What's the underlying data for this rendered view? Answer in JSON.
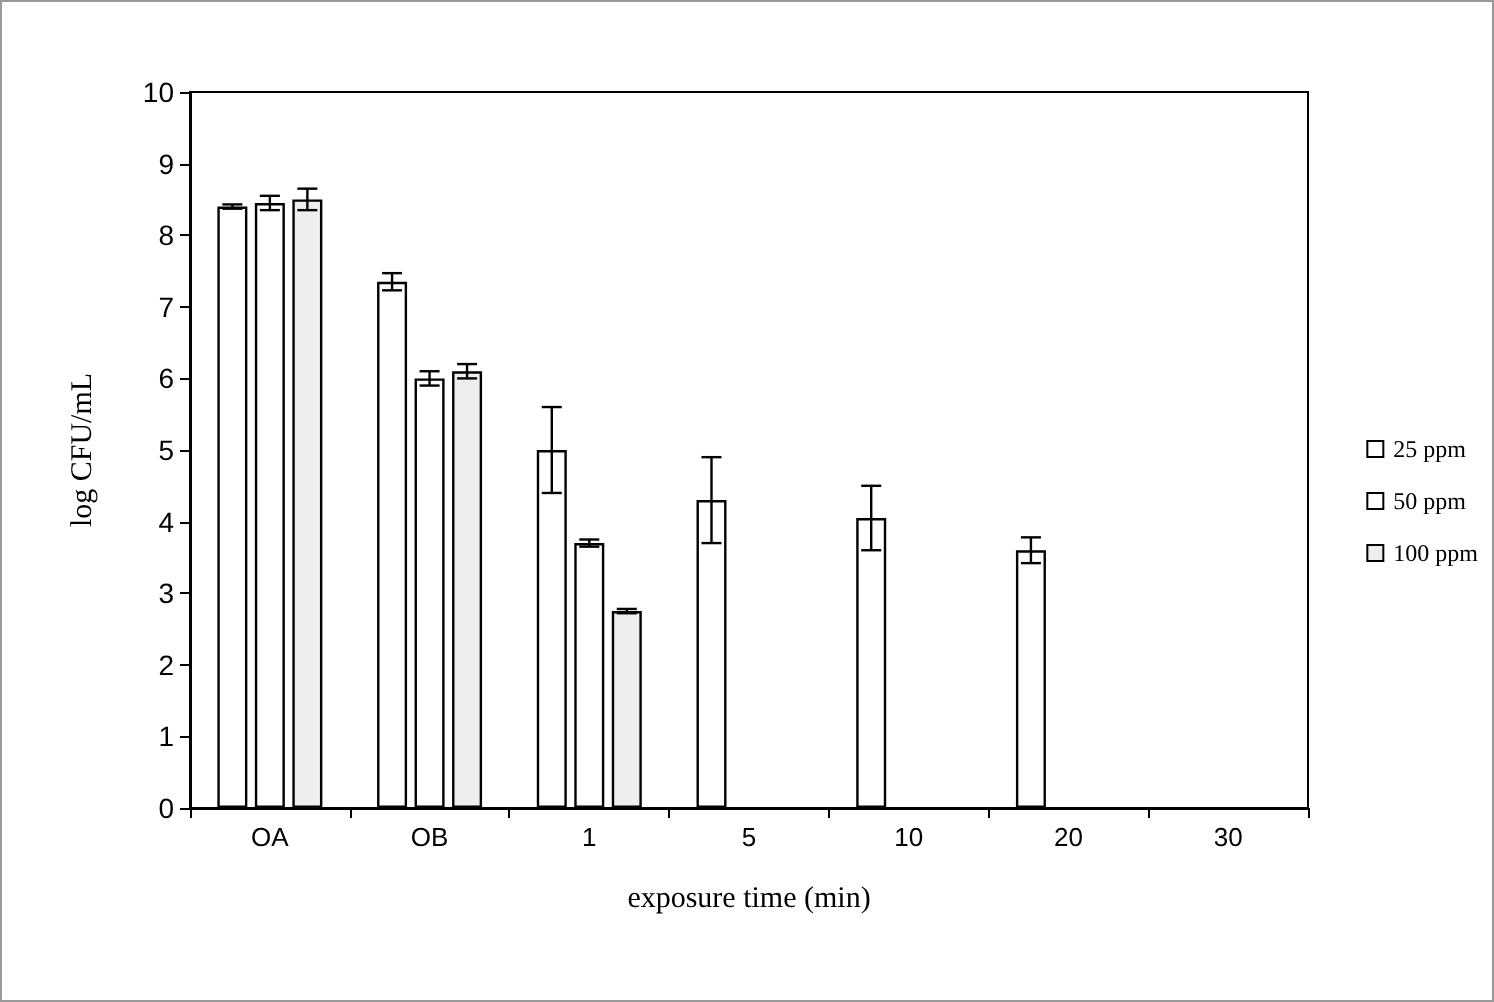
{
  "chart_data": {
    "type": "bar",
    "xlabel": "exposure time (min)",
    "ylabel": "log CFU/mL",
    "categories": [
      "OA",
      "OB",
      "1",
      "5",
      "10",
      "20",
      "30"
    ],
    "series": [
      {
        "name": "25 ppm",
        "color": "#ffffff",
        "values": [
          8.4,
          7.35,
          5.0,
          4.3,
          4.05,
          3.6,
          null
        ],
        "errors": [
          0.03,
          0.12,
          0.6,
          0.6,
          0.45,
          0.18,
          null
        ]
      },
      {
        "name": "50 ppm",
        "color": "#ffffff",
        "values": [
          8.45,
          6.0,
          3.7,
          null,
          null,
          null,
          null
        ],
        "errors": [
          0.1,
          0.1,
          0.05,
          null,
          null,
          null,
          null
        ]
      },
      {
        "name": "100 ppm",
        "color": "#eeeeee",
        "values": [
          8.5,
          6.1,
          2.75,
          null,
          null,
          null,
          null
        ],
        "errors": [
          0.15,
          0.1,
          0.03,
          null,
          null,
          null,
          null
        ]
      }
    ],
    "ylim": [
      0,
      10
    ],
    "yticks": [
      0,
      1,
      2,
      3,
      4,
      5,
      6,
      7,
      8,
      9,
      10
    ],
    "grid": false,
    "legend": "right"
  }
}
